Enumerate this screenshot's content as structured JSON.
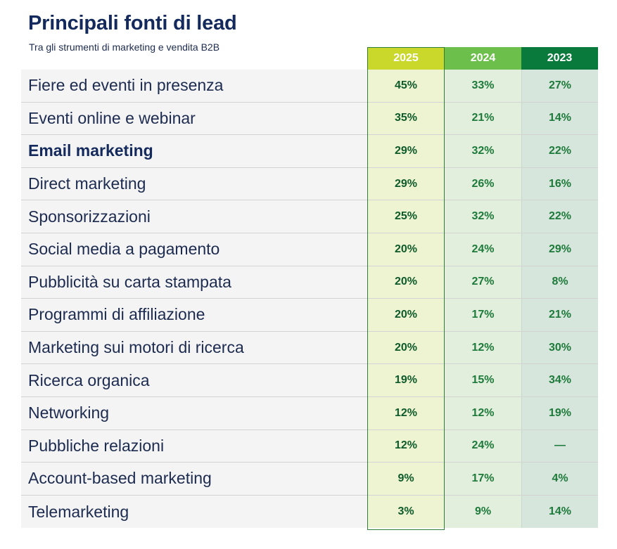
{
  "header": {
    "title": "Principali fonti di lead",
    "subtitle": "Tra gli strumenti di marketing e vendita B2B"
  },
  "colors": {
    "title": "#142a5c",
    "y2025": "#c9d82b",
    "y2024": "#6cbf4a",
    "y2023": "#0a7a3c"
  },
  "chart_data": {
    "type": "table",
    "title": "Principali fonti di lead",
    "subtitle": "Tra gli strumenti di marketing e vendita B2B",
    "columns": [
      "2025",
      "2024",
      "2023"
    ],
    "rows": [
      {
        "label": "Fiere ed eventi in presenza",
        "bold": false,
        "values": [
          "45%",
          "33%",
          "27%"
        ]
      },
      {
        "label": "Eventi online e webinar",
        "bold": false,
        "values": [
          "35%",
          "21%",
          "14%"
        ]
      },
      {
        "label": "Email marketing",
        "bold": true,
        "values": [
          "29%",
          "32%",
          "22%"
        ]
      },
      {
        "label": "Direct marketing",
        "bold": false,
        "values": [
          "29%",
          "26%",
          "16%"
        ]
      },
      {
        "label": "Sponsorizzazioni",
        "bold": false,
        "values": [
          "25%",
          "32%",
          "22%"
        ]
      },
      {
        "label": "Social media a pagamento",
        "bold": false,
        "values": [
          "20%",
          "24%",
          "29%"
        ]
      },
      {
        "label": "Pubblicità su carta stampata",
        "bold": false,
        "values": [
          "20%",
          "27%",
          "8%"
        ]
      },
      {
        "label": "Programmi di affiliazione",
        "bold": false,
        "values": [
          "20%",
          "17%",
          "21%"
        ]
      },
      {
        "label": "Marketing sui motori di ricerca",
        "bold": false,
        "values": [
          "20%",
          "12%",
          "30%"
        ]
      },
      {
        "label": "Ricerca organica",
        "bold": false,
        "values": [
          "19%",
          "15%",
          "34%"
        ]
      },
      {
        "label": "Networking",
        "bold": false,
        "values": [
          "12%",
          "12%",
          "19%"
        ]
      },
      {
        "label": "Pubbliche relazioni",
        "bold": false,
        "values": [
          "12%",
          "24%",
          "—"
        ]
      },
      {
        "label": "Account-based marketing",
        "bold": false,
        "values": [
          "9%",
          "17%",
          "4%"
        ]
      },
      {
        "label": "Telemarketing",
        "bold": false,
        "values": [
          "3%",
          "9%",
          "14%"
        ]
      }
    ]
  }
}
